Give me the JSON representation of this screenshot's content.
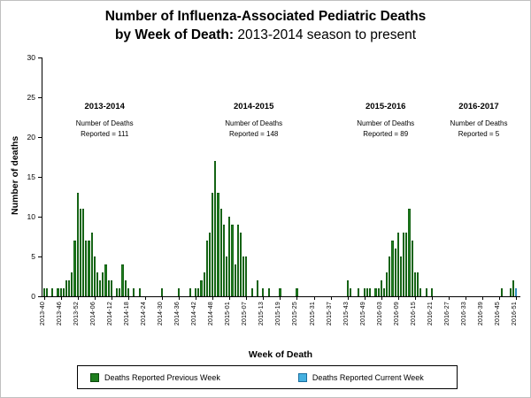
{
  "header": {
    "line1": "Number of Influenza-Associated Pediatric Deaths",
    "line2_bold": "by Week of Death:",
    "line2_rest": " 2013-2014 season to present"
  },
  "chart_data": {
    "type": "bar",
    "title": "Number of Influenza-Associated Pediatric Deaths by Week of Death: 2013-2014 season to present",
    "xlabel": "Week of Death",
    "ylabel": "Number of deaths",
    "ylim": [
      0,
      30
    ],
    "yticks": [
      0,
      5,
      10,
      15,
      20,
      25,
      30
    ],
    "grid": false,
    "tick_interval": 6,
    "week_series": [
      {
        "year": "2013",
        "start": 40,
        "end": 52
      },
      {
        "year": "2014",
        "start": 1,
        "end": 53
      },
      {
        "year": "2015",
        "start": 1,
        "end": 52
      },
      {
        "year": "2016",
        "start": 1,
        "end": 52
      }
    ],
    "xticklabels": [
      "2013-40",
      "2013-46",
      "2013-52",
      "2014-06",
      "2014-12",
      "2014-18",
      "2014-24",
      "2014-30",
      "2014-36",
      "2014-42",
      "2014-48",
      "2015-01",
      "2015-07",
      "2015-13",
      "2015-19",
      "2015-25",
      "2015-31",
      "2015-37",
      "2015-43",
      "2015-49",
      "2016-03",
      "2016-09",
      "2016-15",
      "2016-21",
      "2016-27",
      "2016-33",
      "2016-39",
      "2016-45",
      "2016-51"
    ],
    "values": [
      1,
      1,
      0,
      1,
      0,
      1,
      1,
      1,
      2,
      2,
      3,
      7,
      13,
      11,
      11,
      7,
      7,
      8,
      5,
      3,
      2,
      3,
      4,
      2,
      2,
      0,
      1,
      1,
      4,
      2,
      1,
      0,
      1,
      0,
      1,
      0,
      0,
      0,
      0,
      0,
      0,
      0,
      1,
      0,
      0,
      0,
      0,
      0,
      1,
      0,
      0,
      0,
      1,
      0,
      1,
      1,
      2,
      3,
      7,
      8,
      13,
      17,
      13,
      11,
      9,
      5,
      10,
      9,
      4,
      9,
      8,
      5,
      5,
      0,
      1,
      0,
      2,
      0,
      1,
      0,
      1,
      0,
      0,
      0,
      1,
      0,
      0,
      0,
      0,
      0,
      1,
      0,
      0,
      0,
      0,
      0,
      0,
      0,
      0,
      0,
      0,
      0,
      0,
      0,
      0,
      0,
      0,
      0,
      2,
      1,
      0,
      0,
      1,
      0,
      1,
      1,
      1,
      0,
      1,
      1,
      2,
      1,
      3,
      5,
      7,
      6,
      8,
      5,
      8,
      8,
      11,
      7,
      3,
      3,
      1,
      0,
      1,
      0,
      1,
      0,
      0,
      0,
      0,
      0,
      0,
      0,
      0,
      0,
      0,
      0,
      0,
      0,
      0,
      0,
      0,
      0,
      0,
      0,
      0,
      0,
      0,
      0,
      0,
      1,
      0,
      0,
      1,
      2,
      1,
      0
    ],
    "current_week_index": 168,
    "colors": {
      "previous": "#1e7e1e",
      "previous_border": "#0c4a0c",
      "current": "#45b0e0",
      "current_border": "#1b6fa0"
    },
    "annotations": [
      {
        "season": "2013-2014",
        "line1": "Number of Deaths",
        "line2": "Reported = 111",
        "left_pct": 13
      },
      {
        "season": "2014-2015",
        "line1": "Number of Deaths",
        "line2": "Reported = 148",
        "left_pct": 44.2
      },
      {
        "season": "2015-2016",
        "line1": "Number of Deaths",
        "line2": "Reported = 89",
        "left_pct": 71.8
      },
      {
        "season": "2016-2017",
        "line1": "Number of Deaths",
        "line2": "Reported = 5",
        "left_pct": 91.3
      }
    ],
    "legend": [
      {
        "key": "previous",
        "label": "Deaths Reported Previous Week"
      },
      {
        "key": "current",
        "label": "Deaths Reported Current Week"
      }
    ]
  }
}
